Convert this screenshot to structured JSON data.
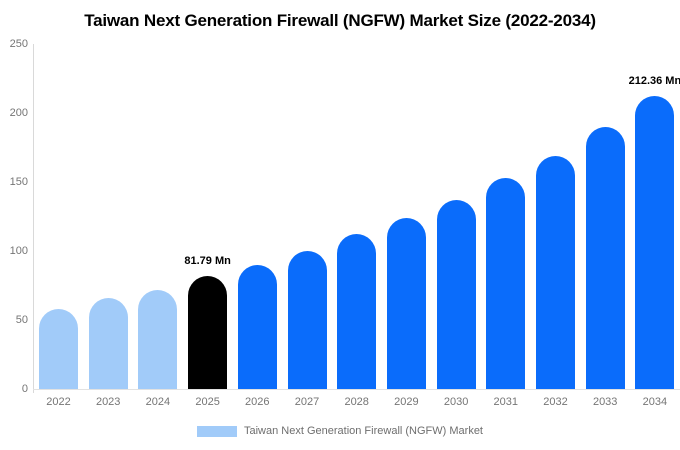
{
  "title": "Taiwan Next Generation Firewall (NGFW) Market Size (2022-2034)",
  "legend": {
    "label": "Taiwan Next Generation Firewall (NGFW) Market",
    "swatch_color": "#A1CBF9"
  },
  "chart_data": {
    "type": "bar",
    "title": "Taiwan Next Generation Firewall (NGFW) Market Size (2022-2034)",
    "unit": "Mn",
    "categories": [
      "2022",
      "2023",
      "2024",
      "2025",
      "2026",
      "2027",
      "2028",
      "2029",
      "2030",
      "2031",
      "2032",
      "2033",
      "2034"
    ],
    "values": [
      58,
      66,
      72,
      81.79,
      90,
      100,
      112,
      124,
      137,
      153,
      169,
      190,
      212.36
    ],
    "bar_roles": [
      "historical",
      "historical",
      "historical",
      "base_year",
      "forecast",
      "forecast",
      "forecast",
      "forecast",
      "forecast",
      "forecast",
      "forecast",
      "forecast",
      "forecast"
    ],
    "role_colors": {
      "historical": "#A1CBF9",
      "base_year": "#000000",
      "forecast": "#0A6CFB"
    },
    "annotations": [
      {
        "category": "2025",
        "label": "81.79 Mn"
      },
      {
        "category": "2034",
        "label": "212.36 Mn"
      }
    ],
    "xlabel": "",
    "ylabel": "",
    "ylim": [
      0,
      250
    ],
    "yticks": [
      0,
      50,
      100,
      150,
      200,
      250
    ],
    "grid": false,
    "legend_position": "bottom",
    "axis_color": "#d9d9d9",
    "tick_label_color": "#757575"
  }
}
